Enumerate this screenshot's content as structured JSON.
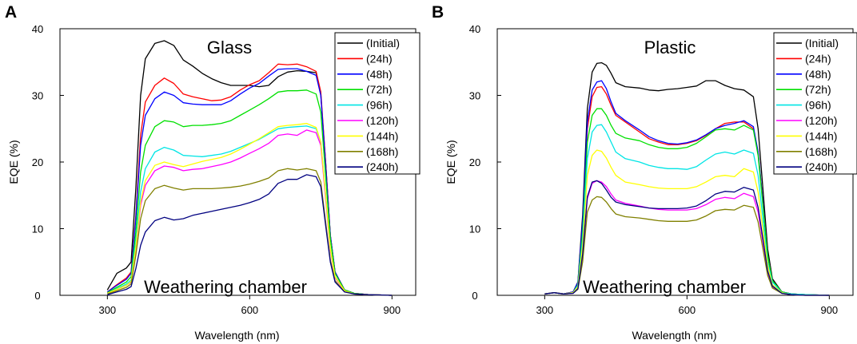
{
  "chart_data": [
    {
      "panel": "A",
      "type": "line",
      "title": "Glass",
      "annotation": "Weathering chamber",
      "xlabel": "Wavelength (nm)",
      "ylabel": "EQE (%)",
      "xlim": [
        200,
        950
      ],
      "ylim": [
        0,
        40
      ],
      "xticks": [
        300,
        600,
        900
      ],
      "yticks": [
        0,
        10,
        20,
        30,
        40
      ],
      "legend_position": "top-right",
      "x": [
        300,
        320,
        340,
        350,
        360,
        370,
        380,
        400,
        420,
        440,
        460,
        480,
        500,
        520,
        540,
        560,
        580,
        600,
        620,
        640,
        660,
        680,
        700,
        720,
        740,
        750,
        760,
        770,
        780,
        800,
        820,
        850,
        900
      ],
      "series": [
        {
          "name": "(Initial)",
          "color": "#000000",
          "values": [
            0.8,
            3.3,
            4.1,
            5.0,
            16.0,
            30.0,
            35.5,
            37.8,
            38.2,
            37.5,
            35.3,
            34.4,
            33.3,
            32.5,
            31.9,
            31.5,
            31.5,
            31.5,
            31.3,
            31.5,
            32.8,
            33.5,
            33.7,
            33.6,
            33.4,
            30.0,
            20.0,
            9.0,
            3.5,
            0.8,
            0.3,
            0.1,
            0.0
          ]
        },
        {
          "name": "(24h)",
          "color": "#ff0000",
          "values": [
            0.5,
            1.6,
            2.6,
            3.5,
            12.0,
            24.0,
            29.0,
            31.5,
            32.6,
            31.8,
            30.2,
            29.8,
            29.5,
            29.2,
            29.3,
            29.8,
            30.8,
            31.6,
            32.2,
            33.4,
            34.7,
            34.6,
            34.7,
            34.3,
            33.6,
            30.5,
            20.0,
            9.0,
            3.5,
            0.8,
            0.3,
            0.1,
            0.0
          ]
        },
        {
          "name": "(48h)",
          "color": "#0000ff",
          "values": [
            0.5,
            1.5,
            2.4,
            3.3,
            11.5,
            22.5,
            27.0,
            29.5,
            30.5,
            30.0,
            28.9,
            28.7,
            28.6,
            28.6,
            28.6,
            29.2,
            30.2,
            31.1,
            31.8,
            32.9,
            33.9,
            34.0,
            34.0,
            33.6,
            33.0,
            30.0,
            19.5,
            9.0,
            3.5,
            0.8,
            0.3,
            0.1,
            0.0
          ]
        },
        {
          "name": "(72h)",
          "color": "#00e000",
          "values": [
            0.4,
            1.2,
            2.0,
            2.8,
            9.5,
            18.5,
            22.5,
            25.3,
            26.2,
            26.0,
            25.3,
            25.5,
            25.5,
            25.6,
            25.8,
            26.2,
            27.0,
            27.8,
            28.6,
            29.5,
            30.5,
            30.7,
            30.7,
            30.8,
            30.2,
            27.5,
            18.0,
            8.5,
            3.3,
            0.8,
            0.3,
            0.1,
            0.0
          ]
        },
        {
          "name": "(96h)",
          "color": "#00e5e5",
          "values": [
            0.3,
            1.0,
            1.7,
            2.3,
            8.0,
            15.5,
            19.0,
            21.5,
            22.2,
            21.8,
            21.0,
            20.9,
            20.8,
            21.0,
            21.2,
            21.6,
            22.2,
            22.8,
            23.4,
            24.2,
            25.0,
            25.2,
            25.3,
            25.4,
            25.0,
            23.0,
            15.0,
            7.0,
            2.8,
            0.7,
            0.2,
            0.1,
            0.0
          ]
        },
        {
          "name": "(120h)",
          "color": "#ff00ff",
          "values": [
            0.3,
            0.9,
            1.5,
            2.0,
            7.0,
            13.5,
            16.5,
            18.7,
            19.4,
            19.2,
            18.7,
            18.9,
            19.0,
            19.3,
            19.6,
            20.0,
            20.6,
            21.3,
            22.0,
            22.8,
            24.0,
            24.2,
            24.0,
            24.8,
            24.4,
            22.5,
            14.5,
            6.8,
            2.7,
            0.6,
            0.2,
            0.1,
            0.0
          ]
        },
        {
          "name": "(144h)",
          "color": "#ffff00",
          "values": [
            0.3,
            0.9,
            1.5,
            2.1,
            7.2,
            14.0,
            17.2,
            19.5,
            20.0,
            19.6,
            19.3,
            19.7,
            20.1,
            20.4,
            20.7,
            21.2,
            21.9,
            22.7,
            23.5,
            24.4,
            25.3,
            25.5,
            25.6,
            25.8,
            25.2,
            23.0,
            15.0,
            7.0,
            2.8,
            0.7,
            0.2,
            0.1,
            0.0
          ]
        },
        {
          "name": "(168h)",
          "color": "#808000",
          "values": [
            0.2,
            0.7,
            1.2,
            1.7,
            6.0,
            11.5,
            14.2,
            16.0,
            16.5,
            16.1,
            15.8,
            16.0,
            16.0,
            16.0,
            16.1,
            16.2,
            16.4,
            16.7,
            17.1,
            17.6,
            18.7,
            19.0,
            18.8,
            19.0,
            18.7,
            17.0,
            11.0,
            5.3,
            2.2,
            0.5,
            0.2,
            0.1,
            0.0
          ]
        },
        {
          "name": "(240h)",
          "color": "#000080",
          "values": [
            0.1,
            0.5,
            0.9,
            1.3,
            4.0,
            7.5,
            9.5,
            11.2,
            11.7,
            11.3,
            11.5,
            12.0,
            12.3,
            12.6,
            12.9,
            13.2,
            13.5,
            13.9,
            14.4,
            15.2,
            16.8,
            17.4,
            17.4,
            18.1,
            17.8,
            16.3,
            10.5,
            5.0,
            2.0,
            0.5,
            0.2,
            0.1,
            0.0
          ]
        }
      ]
    },
    {
      "panel": "B",
      "type": "line",
      "title": "Plastic",
      "annotation": "Weathering chamber",
      "xlabel": "Wavelength (nm)",
      "ylabel": "EQE (%)",
      "xlim": [
        200,
        950
      ],
      "ylim": [
        0,
        40
      ],
      "xticks": [
        300,
        600,
        900
      ],
      "yticks": [
        0,
        10,
        20,
        30,
        40
      ],
      "legend_position": "top-right",
      "x": [
        300,
        320,
        340,
        360,
        370,
        380,
        390,
        400,
        410,
        420,
        430,
        440,
        450,
        470,
        500,
        520,
        540,
        560,
        580,
        600,
        620,
        640,
        660,
        680,
        700,
        720,
        740,
        750,
        760,
        770,
        780,
        800,
        820,
        850,
        900
      ],
      "series": [
        {
          "name": "(Initial)",
          "color": "#000000",
          "values": [
            0.2,
            0.4,
            0.2,
            0.5,
            2.0,
            12.0,
            28.0,
            33.5,
            34.8,
            34.9,
            34.5,
            33.3,
            31.9,
            31.3,
            31.1,
            30.8,
            30.7,
            30.9,
            31.0,
            31.2,
            31.4,
            32.2,
            32.2,
            31.5,
            31.0,
            30.8,
            29.8,
            25.0,
            16.0,
            7.0,
            2.5,
            0.5,
            0.2,
            0.1,
            0.0
          ]
        },
        {
          "name": "(24h)",
          "color": "#ff0000",
          "values": [
            0.2,
            0.4,
            0.2,
            0.5,
            1.8,
            10.5,
            25.0,
            29.8,
            31.2,
            31.3,
            30.2,
            28.5,
            27.0,
            26.0,
            24.5,
            23.5,
            23.0,
            22.6,
            22.6,
            22.8,
            23.2,
            24.0,
            25.0,
            25.8,
            26.0,
            26.0,
            25.0,
            21.5,
            14.0,
            6.0,
            2.2,
            0.5,
            0.2,
            0.1,
            0.0
          ]
        },
        {
          "name": "(48h)",
          "color": "#0000ff",
          "values": [
            0.2,
            0.4,
            0.2,
            0.5,
            1.9,
            11.0,
            26.0,
            30.8,
            32.0,
            32.2,
            31.0,
            29.0,
            27.3,
            26.2,
            24.8,
            23.8,
            23.2,
            22.8,
            22.7,
            22.9,
            23.3,
            24.1,
            25.0,
            25.5,
            25.8,
            26.2,
            25.3,
            21.5,
            14.0,
            6.0,
            2.2,
            0.5,
            0.2,
            0.1,
            0.0
          ]
        },
        {
          "name": "(72h)",
          "color": "#00e000",
          "values": [
            0.2,
            0.4,
            0.2,
            0.4,
            1.6,
            9.5,
            23.0,
            27.0,
            28.0,
            28.0,
            27.0,
            25.5,
            24.3,
            23.6,
            23.2,
            22.6,
            22.2,
            22.0,
            22.0,
            22.2,
            22.8,
            23.8,
            24.8,
            25.0,
            24.8,
            25.5,
            24.8,
            21.0,
            13.5,
            6.0,
            2.2,
            0.5,
            0.2,
            0.1,
            0.0
          ]
        },
        {
          "name": "(96h)",
          "color": "#00e5e5",
          "values": [
            0.2,
            0.4,
            0.2,
            0.4,
            1.5,
            8.5,
            20.5,
            24.5,
            25.5,
            25.6,
            24.5,
            23.0,
            21.5,
            20.5,
            20.0,
            19.5,
            19.2,
            19.0,
            19.0,
            18.9,
            19.3,
            20.3,
            21.2,
            21.5,
            21.2,
            21.8,
            21.3,
            18.0,
            11.5,
            5.0,
            2.0,
            0.4,
            0.2,
            0.1,
            0.0
          ]
        },
        {
          "name": "(120h)",
          "color": "#ff00ff",
          "values": [
            0.2,
            0.4,
            0.2,
            0.3,
            1.0,
            6.0,
            14.5,
            16.8,
            17.2,
            17.0,
            16.3,
            15.2,
            14.3,
            13.8,
            13.4,
            13.1,
            12.9,
            12.8,
            12.8,
            12.8,
            13.0,
            13.6,
            14.4,
            14.7,
            14.5,
            15.3,
            14.8,
            12.5,
            8.0,
            3.5,
            1.3,
            0.3,
            0.1,
            0.0,
            0.0
          ]
        },
        {
          "name": "(144h)",
          "color": "#ffff00",
          "values": [
            0.2,
            0.4,
            0.2,
            0.4,
            1.3,
            7.5,
            18.0,
            21.0,
            21.8,
            21.6,
            20.6,
            19.2,
            18.0,
            17.0,
            16.6,
            16.3,
            16.1,
            16.0,
            16.0,
            16.0,
            16.3,
            17.0,
            17.8,
            18.0,
            17.8,
            19.0,
            18.5,
            15.5,
            10.0,
            4.5,
            1.6,
            0.4,
            0.1,
            0.0,
            0.0
          ]
        },
        {
          "name": "(168h)",
          "color": "#808000",
          "values": [
            0.2,
            0.4,
            0.2,
            0.3,
            0.9,
            5.0,
            12.5,
            14.3,
            14.8,
            14.7,
            14.0,
            13.0,
            12.2,
            11.8,
            11.6,
            11.4,
            11.2,
            11.1,
            11.1,
            11.1,
            11.3,
            11.9,
            12.7,
            12.9,
            12.8,
            13.5,
            13.2,
            11.0,
            7.0,
            3.0,
            1.1,
            0.3,
            0.1,
            0.0,
            0.0
          ]
        },
        {
          "name": "(240h)",
          "color": "#000080",
          "values": [
            0.2,
            0.4,
            0.2,
            0.3,
            1.0,
            6.2,
            14.8,
            17.0,
            17.2,
            16.8,
            15.8,
            14.7,
            14.0,
            13.6,
            13.3,
            13.1,
            13.0,
            13.0,
            13.0,
            13.1,
            13.4,
            14.2,
            15.2,
            15.6,
            15.5,
            16.2,
            15.8,
            13.2,
            8.5,
            3.7,
            1.4,
            0.3,
            0.1,
            0.0,
            0.0
          ]
        }
      ]
    }
  ]
}
